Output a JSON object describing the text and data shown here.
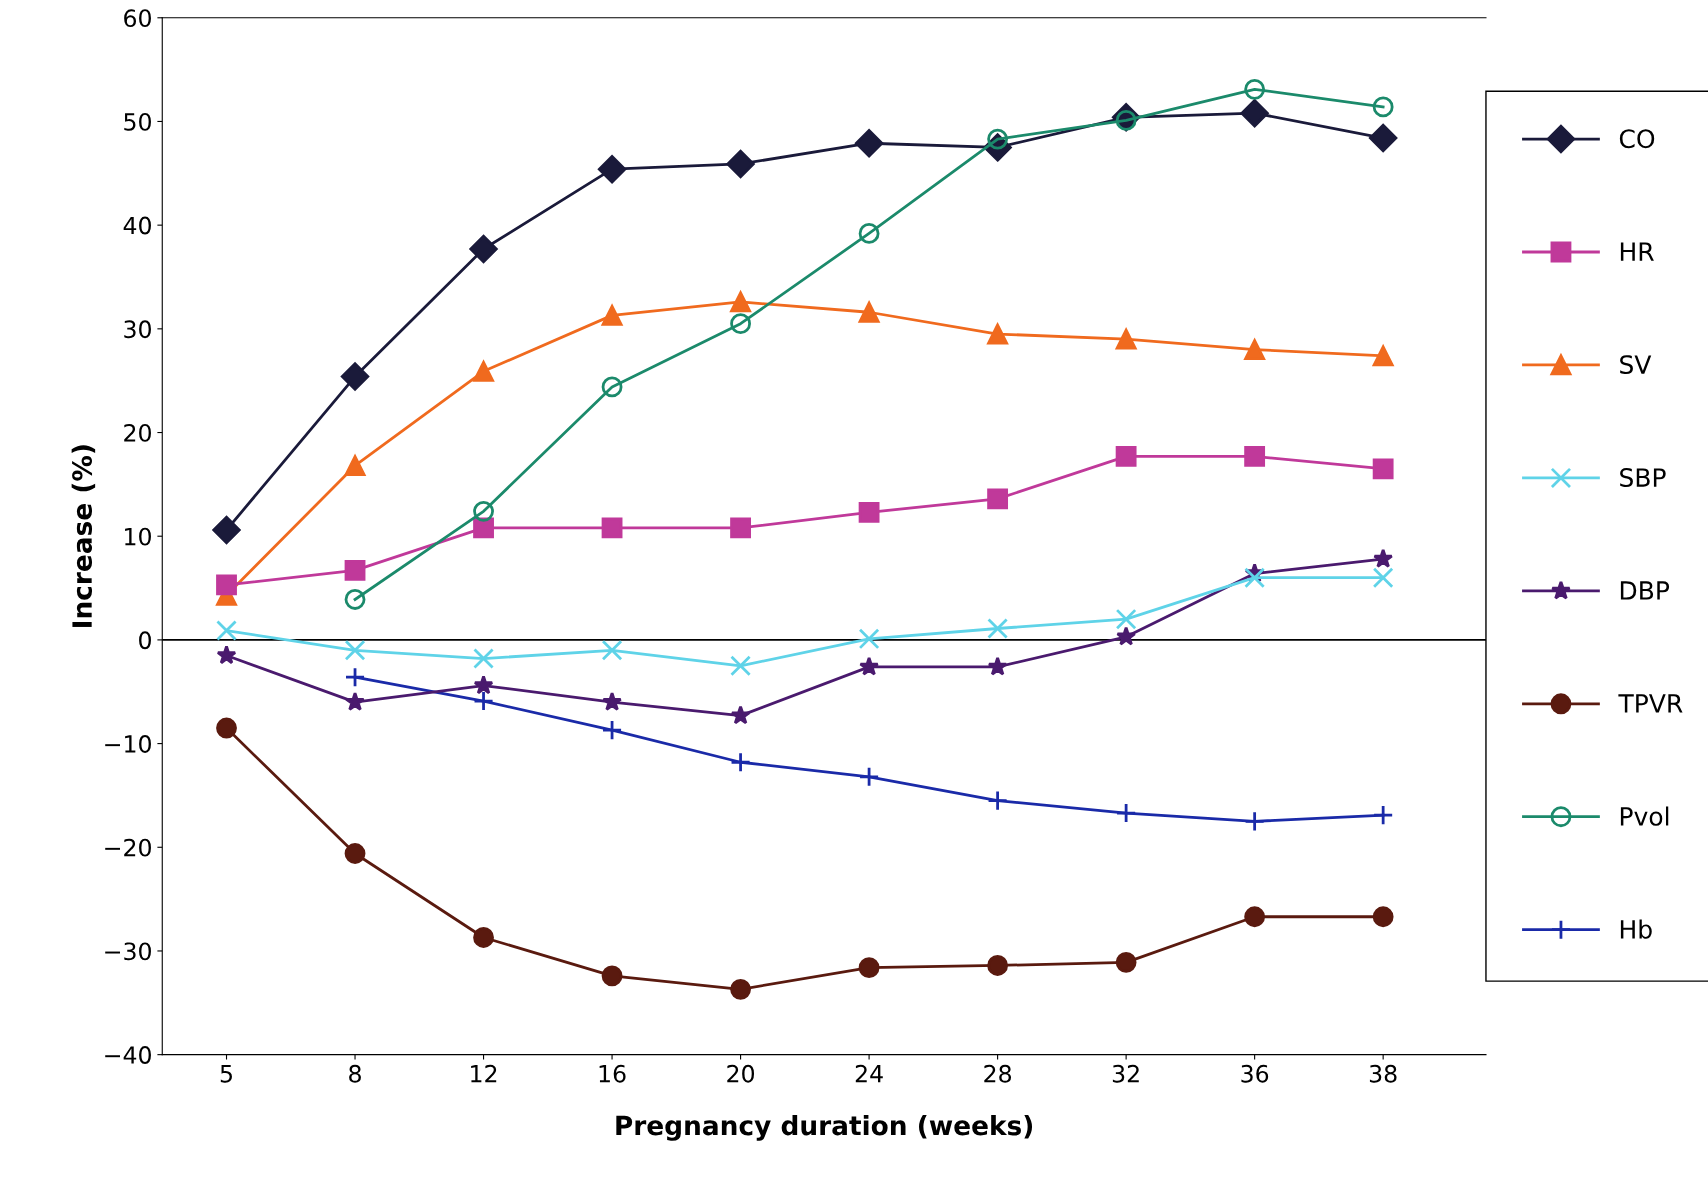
{
  "chart_data": {
    "type": "line",
    "xlabel": "Pregnancy duration (weeks)",
    "ylabel": "Increase (%)",
    "categories": [
      "5",
      "8",
      "12",
      "16",
      "20",
      "24",
      "28",
      "32",
      "36",
      "38"
    ],
    "ylim": [
      -40,
      60
    ],
    "yticks": [
      {
        "value": -40,
        "label": "−40"
      },
      {
        "value": -30,
        "label": "−30"
      },
      {
        "value": -20,
        "label": "−20"
      },
      {
        "value": -10,
        "label": "−10"
      },
      0,
      10,
      20,
      30,
      40,
      50,
      60
    ],
    "grid": false,
    "ref_lines": [
      {
        "axis": "y",
        "value": 0
      }
    ],
    "legend": "right",
    "line_style": "solid",
    "series": [
      {
        "name": "CO",
        "color": "#1a1a3a",
        "marker": "diamond",
        "values": [
          10.6,
          25.4,
          37.7,
          45.4,
          45.9,
          47.9,
          47.5,
          50.4,
          50.8,
          48.4
        ]
      },
      {
        "name": "HR",
        "color": "#c0399a",
        "marker": "square",
        "values": [
          5.3,
          6.7,
          10.8,
          10.8,
          10.8,
          12.3,
          13.6,
          17.7,
          17.7,
          16.5
        ]
      },
      {
        "name": "SV",
        "color": "#f06a1e",
        "marker": "triangle",
        "values": [
          4.3,
          16.8,
          25.9,
          31.3,
          32.6,
          31.6,
          29.5,
          29,
          28,
          27.4
        ]
      },
      {
        "name": "SBP",
        "color": "#5fd3e8",
        "marker": "cross",
        "values": [
          0.9,
          -1,
          -1.8,
          -1,
          -2.5,
          0.1,
          1.1,
          2,
          6,
          6
        ]
      },
      {
        "name": "DBP",
        "color": "#4a1a6e",
        "marker": "star",
        "values": [
          -1.5,
          -6,
          -4.4,
          -6,
          -7.3,
          -2.6,
          -2.6,
          0.3,
          6.4,
          7.8
        ]
      },
      {
        "name": "TPVR",
        "color": "#5a1a0f",
        "marker": "circle",
        "values": [
          -8.5,
          -20.6,
          -28.7,
          -32.4,
          -33.7,
          -31.6,
          -31.4,
          -31.1,
          -26.7,
          -26.7
        ]
      },
      {
        "name": "Pvol",
        "color": "#1b8a6b",
        "marker": "circle",
        "values": [
          null,
          3.9,
          12.4,
          24.4,
          30.5,
          39.2,
          48.3,
          50.1,
          53.1,
          51.4
        ]
      },
      {
        "name": "Hb",
        "color": "#1a2aa8",
        "marker": "plus",
        "values": [
          null,
          -3.6,
          -5.9,
          -8.7,
          -11.8,
          -13.2,
          -15.5,
          -16.7,
          -17.5,
          -16.9
        ]
      }
    ]
  }
}
